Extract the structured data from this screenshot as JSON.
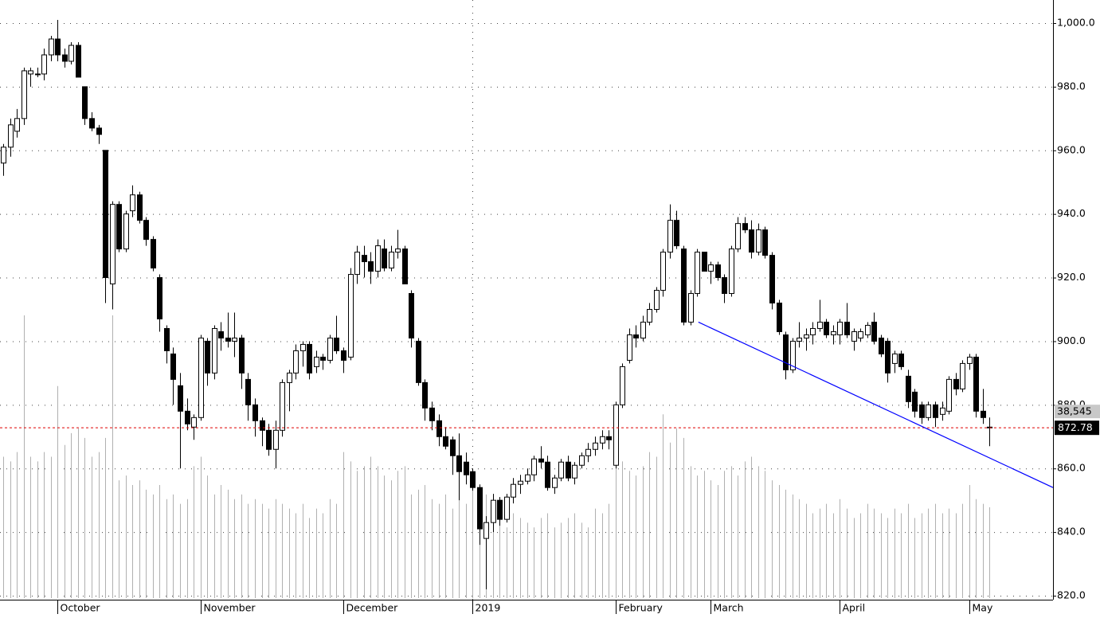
{
  "chart_data": {
    "type": "candlestick",
    "categories": [
      null,
      null,
      null,
      null,
      null,
      null,
      null,
      null,
      "October",
      null,
      null,
      null,
      null,
      null,
      null,
      null,
      null,
      null,
      null,
      null,
      null,
      null,
      null,
      null,
      null,
      null,
      null,
      null,
      null,
      "November",
      null,
      null,
      null,
      null,
      null,
      null,
      null,
      null,
      null,
      null,
      null,
      null,
      null,
      null,
      null,
      null,
      null,
      null,
      null,
      null,
      "December",
      null,
      null,
      null,
      null,
      null,
      null,
      null,
      null,
      null,
      null,
      null,
      null,
      null,
      null,
      null,
      null,
      null,
      null,
      "2019",
      null,
      null,
      null,
      null,
      null,
      null,
      null,
      null,
      null,
      null,
      null,
      null,
      null,
      null,
      null,
      null,
      null,
      null,
      null,
      null,
      "February",
      null,
      null,
      null,
      null,
      null,
      null,
      null,
      null,
      null,
      null,
      null,
      null,
      null,
      "March",
      null,
      null,
      null,
      null,
      null,
      null,
      null,
      null,
      null,
      null,
      null,
      null,
      null,
      null,
      null,
      null,
      null,
      null,
      "April",
      null,
      null,
      null,
      null,
      null,
      null,
      null,
      null,
      null,
      null,
      null,
      null,
      null,
      null,
      null,
      null,
      null,
      null,
      "May",
      null,
      null,
      null
    ],
    "ohlc": [
      [
        956,
        962,
        952,
        961
      ],
      [
        961,
        970,
        958,
        968
      ],
      [
        966,
        973,
        964,
        970
      ],
      [
        970,
        986,
        968,
        985
      ],
      [
        984,
        986,
        980,
        985
      ],
      [
        984,
        986,
        983,
        984
      ],
      [
        984,
        992,
        982,
        990
      ],
      [
        990,
        996,
        988,
        995
      ],
      [
        995,
        1001,
        988,
        990
      ],
      [
        990,
        992,
        986,
        988
      ],
      [
        988,
        994,
        987,
        993
      ],
      [
        993,
        994,
        983,
        983
      ],
      [
        980,
        980,
        968,
        970
      ],
      [
        970,
        972,
        966,
        967
      ],
      [
        967,
        968,
        962,
        965
      ],
      [
        960,
        960,
        912,
        920
      ],
      [
        918,
        944,
        910,
        943
      ],
      [
        943,
        944,
        928,
        929
      ],
      [
        929,
        941,
        928,
        940
      ],
      [
        941,
        949,
        939,
        946
      ],
      [
        946,
        947,
        937,
        938
      ],
      [
        938,
        939,
        930,
        932
      ],
      [
        932,
        933,
        922,
        923
      ],
      [
        920,
        921,
        903,
        907
      ],
      [
        904,
        905,
        893,
        897
      ],
      [
        896,
        898,
        880,
        888
      ],
      [
        886,
        890,
        860,
        878
      ],
      [
        878,
        882,
        872,
        874
      ],
      [
        873,
        877,
        869,
        876
      ],
      [
        876,
        902,
        875,
        901
      ],
      [
        900,
        901,
        886,
        890
      ],
      [
        890,
        905,
        888,
        904
      ],
      [
        903,
        906,
        897,
        901
      ],
      [
        901,
        909,
        898,
        900
      ],
      [
        900,
        909,
        895,
        901
      ],
      [
        901,
        902,
        885,
        890
      ],
      [
        888,
        890,
        875,
        880
      ],
      [
        880,
        882,
        870,
        875
      ],
      [
        875,
        876,
        867,
        872
      ],
      [
        872,
        874,
        864,
        866
      ],
      [
        866,
        875,
        860,
        872
      ],
      [
        872,
        888,
        870,
        887
      ],
      [
        887,
        891,
        878,
        890
      ],
      [
        890,
        899,
        888,
        897
      ],
      [
        897,
        900,
        892,
        899
      ],
      [
        899,
        900,
        888,
        890
      ],
      [
        892,
        897,
        890,
        895
      ],
      [
        895,
        896,
        891,
        894
      ],
      [
        894,
        902,
        893,
        901
      ],
      [
        901,
        908,
        896,
        897
      ],
      [
        897,
        898,
        890,
        894
      ],
      [
        895,
        923,
        894,
        921
      ],
      [
        921,
        930,
        918,
        928
      ],
      [
        927,
        930,
        920,
        925
      ],
      [
        925,
        928,
        918,
        922
      ],
      [
        922,
        932,
        920,
        930
      ],
      [
        929,
        932,
        922,
        923
      ],
      [
        923,
        930,
        922,
        928
      ],
      [
        928,
        935,
        926,
        929
      ],
      [
        929,
        930,
        918,
        918
      ],
      [
        915,
        916,
        898,
        901
      ],
      [
        900,
        901,
        886,
        887
      ],
      [
        887,
        888,
        875,
        879
      ],
      [
        879,
        881,
        872,
        875
      ],
      [
        875,
        877,
        867,
        870
      ],
      [
        870,
        873,
        866,
        867
      ],
      [
        869,
        870,
        858,
        864
      ],
      [
        864,
        871,
        850,
        859
      ],
      [
        862,
        865,
        855,
        858
      ],
      [
        859,
        860,
        853,
        854
      ],
      [
        854,
        855,
        836,
        841
      ],
      [
        838,
        845,
        822,
        843
      ],
      [
        843,
        852,
        840,
        850
      ],
      [
        850,
        851,
        842,
        844
      ],
      [
        844,
        852,
        843,
        851
      ],
      [
        851,
        857,
        849,
        855
      ],
      [
        855,
        858,
        852,
        856
      ],
      [
        856,
        860,
        855,
        858
      ],
      [
        858,
        864,
        856,
        863
      ],
      [
        863,
        867,
        860,
        862
      ],
      [
        862,
        864,
        853,
        854
      ],
      [
        854,
        858,
        852,
        857
      ],
      [
        857,
        863,
        856,
        862
      ],
      [
        862,
        864,
        856,
        857
      ],
      [
        857,
        862,
        855,
        861
      ],
      [
        861,
        865,
        860,
        864
      ],
      [
        864,
        868,
        862,
        866
      ],
      [
        866,
        870,
        864,
        868
      ],
      [
        868,
        872,
        866,
        870
      ],
      [
        870,
        872,
        866,
        869
      ],
      [
        861,
        881,
        860,
        880
      ],
      [
        880,
        893,
        879,
        892
      ],
      [
        894,
        904,
        893,
        902
      ],
      [
        902,
        905,
        898,
        901
      ],
      [
        901,
        908,
        900,
        906
      ],
      [
        906,
        912,
        905,
        910
      ],
      [
        910,
        917,
        909,
        916
      ],
      [
        916,
        929,
        914,
        928
      ],
      [
        928,
        943,
        926,
        938
      ],
      [
        938,
        941,
        929,
        930
      ],
      [
        929,
        930,
        905,
        906
      ],
      [
        906,
        916,
        905,
        915
      ],
      [
        915,
        929,
        914,
        928
      ],
      [
        928,
        928,
        922,
        922
      ],
      [
        922,
        925,
        918,
        924
      ],
      [
        924,
        925,
        919,
        920
      ],
      [
        920,
        921,
        912,
        915
      ],
      [
        915,
        930,
        914,
        929
      ],
      [
        929,
        939,
        928,
        937
      ],
      [
        937,
        939,
        934,
        935
      ],
      [
        935,
        938,
        926,
        928
      ],
      [
        928,
        937,
        927,
        935
      ],
      [
        935,
        936,
        926,
        927
      ],
      [
        927,
        928,
        910,
        912
      ],
      [
        912,
        913,
        902,
        903
      ],
      [
        902,
        903,
        888,
        891
      ],
      [
        891,
        901,
        890,
        900
      ],
      [
        900,
        906,
        898,
        901
      ],
      [
        901,
        904,
        897,
        902
      ],
      [
        902,
        906,
        899,
        904
      ],
      [
        904,
        913,
        903,
        906
      ],
      [
        906,
        907,
        901,
        902
      ],
      [
        902,
        905,
        899,
        903
      ],
      [
        902,
        907,
        899,
        906
      ],
      [
        906,
        912,
        901,
        902
      ],
      [
        900,
        904,
        897,
        903
      ],
      [
        901,
        904,
        900,
        903
      ],
      [
        902,
        906,
        901,
        905
      ],
      [
        906,
        909,
        899,
        900
      ],
      [
        901,
        902,
        895,
        896
      ],
      [
        900,
        901,
        887,
        890
      ],
      [
        893,
        897,
        890,
        896
      ],
      [
        896,
        897,
        891,
        892
      ],
      [
        889,
        891,
        879,
        881
      ],
      [
        884,
        885,
        876,
        878
      ],
      [
        880,
        881,
        874,
        876
      ],
      [
        876,
        881,
        875,
        880
      ],
      [
        880,
        881,
        873,
        876
      ],
      [
        877,
        881,
        875,
        879
      ],
      [
        878,
        889,
        877,
        888
      ],
      [
        888,
        890,
        883,
        885
      ],
      [
        885,
        894,
        884,
        893
      ],
      [
        893,
        896,
        891,
        895
      ],
      [
        895,
        896,
        876,
        878
      ],
      [
        878,
        885,
        874,
        876
      ],
      [
        873,
        876,
        867,
        872.78
      ]
    ],
    "volume": [
      60000,
      58000,
      62000,
      120000,
      60000,
      58000,
      62000,
      60000,
      90000,
      65000,
      70000,
      72000,
      68000,
      60000,
      62000,
      68000,
      120000,
      50000,
      52000,
      48000,
      50000,
      46000,
      44000,
      48000,
      42000,
      44000,
      40000,
      42000,
      56000,
      60000,
      52000,
      44000,
      48000,
      46000,
      42000,
      44000,
      40000,
      42000,
      40000,
      38000,
      42000,
      40000,
      38000,
      36000,
      40000,
      34000,
      38000,
      36000,
      42000,
      40000,
      62000,
      58000,
      54000,
      56000,
      60000,
      56000,
      52000,
      50000,
      54000,
      56000,
      44000,
      46000,
      48000,
      42000,
      40000,
      44000,
      38000,
      42000,
      40000,
      52000,
      48000,
      44000,
      40000,
      34000,
      30000,
      36000,
      34000,
      32000,
      30000,
      34000,
      36000,
      30000,
      32000,
      34000,
      36000,
      32000,
      30000,
      38000,
      36000,
      40000,
      56000,
      58000,
      54000,
      52000,
      56000,
      62000,
      60000,
      78000,
      66000,
      72000,
      68000,
      56000,
      52000,
      54000,
      50000,
      48000,
      54000,
      56000,
      52000,
      58000,
      60000,
      56000,
      54000,
      50000,
      48000,
      46000,
      44000,
      42000,
      40000,
      36000,
      38000,
      40000,
      36000,
      42000,
      38000,
      34000,
      36000,
      40000,
      38000,
      36000,
      34000,
      38000,
      36000,
      40000,
      34000,
      36000,
      38000,
      40000,
      36000,
      38000,
      36000,
      40000,
      48000,
      42000,
      40000,
      38545
    ],
    "volume_label": {
      "value": 38545,
      "label": "38,545"
    },
    "ylim": [
      820,
      1000
    ],
    "yticks": [
      {
        "value": 820,
        "label": "820.0"
      },
      {
        "value": 840,
        "label": "840.0"
      },
      {
        "value": 860,
        "label": "860.0"
      },
      {
        "value": 880,
        "label": "880.0"
      },
      {
        "value": 900,
        "label": "900.0"
      },
      {
        "value": 920,
        "label": "920.0"
      },
      {
        "value": 940,
        "label": "940.0"
      },
      {
        "value": 960,
        "label": "960.0"
      },
      {
        "value": 980,
        "label": "980.0"
      },
      {
        "value": 1000,
        "label": "1,000.0"
      }
    ],
    "grid": true,
    "up_color": "#ffffff",
    "down_color": "#000000",
    "volume_color": "#b0b0b0",
    "reference_line": {
      "color": "#e00000"
    },
    "trendline": {
      "color": "#0000ff",
      "values": [
        906,
        854
      ]
    }
  }
}
